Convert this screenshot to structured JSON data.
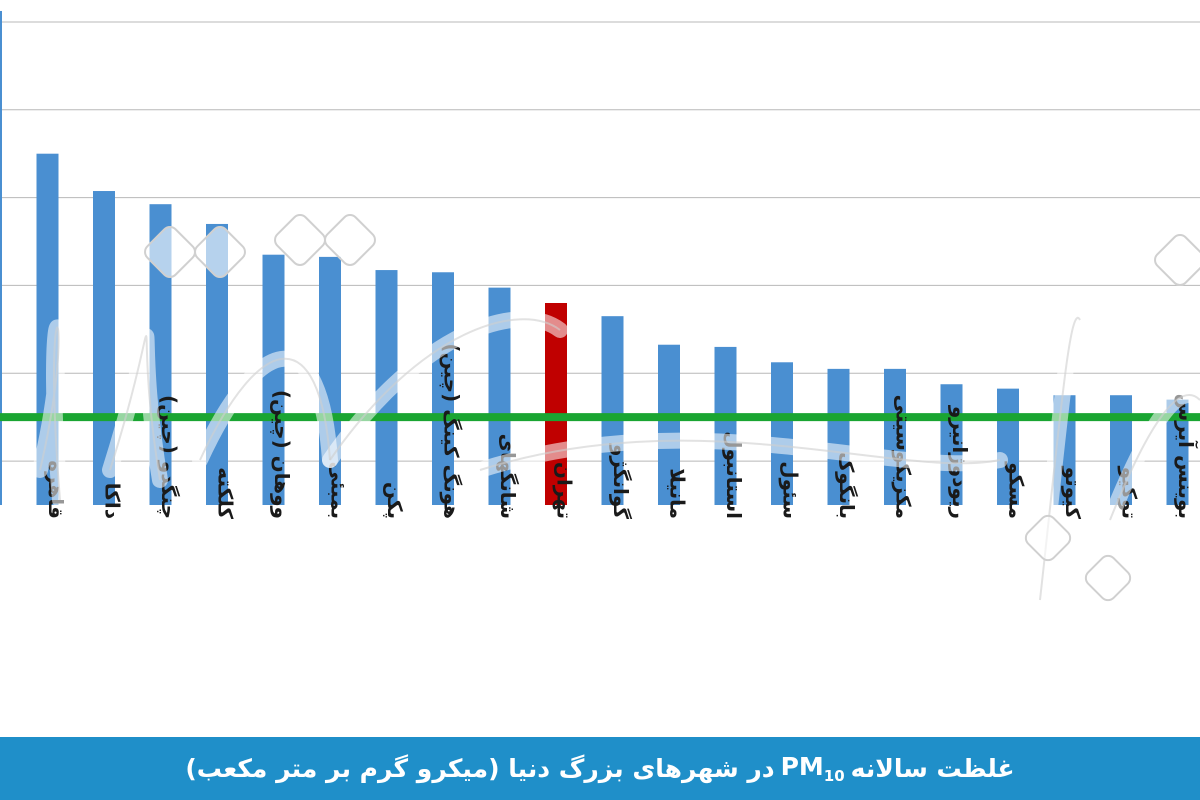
{
  "chart_data": {
    "type": "bar",
    "categories": [
      "",
      "قاهره",
      "داکا",
      "چنگدو (چین)",
      "کلکته",
      "ووهان (چین)",
      "بمبئی",
      "پکن",
      "هونگ کینگ (چین)",
      "شانگهای",
      "تهران",
      "گوانگژو",
      "مانیلا",
      "استانبول",
      "سئول",
      "بانگوک",
      "مکزیکوسیتی",
      "ریودوژانیرو",
      "مسکو",
      "کیوتو",
      "توکیو",
      "بوینس آیرس"
    ],
    "values": [
      205,
      140,
      123,
      117,
      108,
      94,
      93,
      87,
      86,
      79,
      72,
      66,
      53,
      52,
      45,
      42,
      42,
      35,
      33,
      30,
      30,
      28
    ],
    "highlight_index": 10,
    "reference_line": 20,
    "ylim": [
      -20,
      210
    ],
    "grid": true,
    "colors": {
      "bar": "#4a8fd1",
      "highlight": "#c00000",
      "reference_line": "#1aa532",
      "gridline": "#b8b8b8",
      "caption_bg": "#1f8fc9"
    }
  },
  "caption": {
    "before": "غلظت سالانه",
    "pm": "PM",
    "sub": "10",
    "after": "در شهرهای بزرگ دنیا (میکرو گرم بر متر مکعب)"
  },
  "watermark": {
    "text": "دنیای اقتصاد"
  }
}
